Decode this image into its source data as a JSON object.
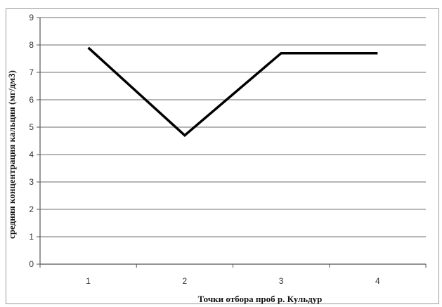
{
  "chart_data": {
    "type": "line",
    "x": [
      1,
      2,
      3,
      4
    ],
    "categories": [
      "1",
      "2",
      "3",
      "4"
    ],
    "series": [
      {
        "values": [
          7.9,
          4.7,
          7.7,
          7.7
        ]
      }
    ],
    "xlabel": "Точки отбора проб р. Кульдур",
    "ylabel": "средняя концентрация кальция (мг/дм3)",
    "ylim": [
      0,
      9
    ],
    "yticks": [
      0,
      1,
      2,
      3,
      4,
      5,
      6,
      7,
      8,
      9
    ],
    "grid": true,
    "legend": "none",
    "line_color": "#000000",
    "grid_color": "#8a8a8a"
  }
}
